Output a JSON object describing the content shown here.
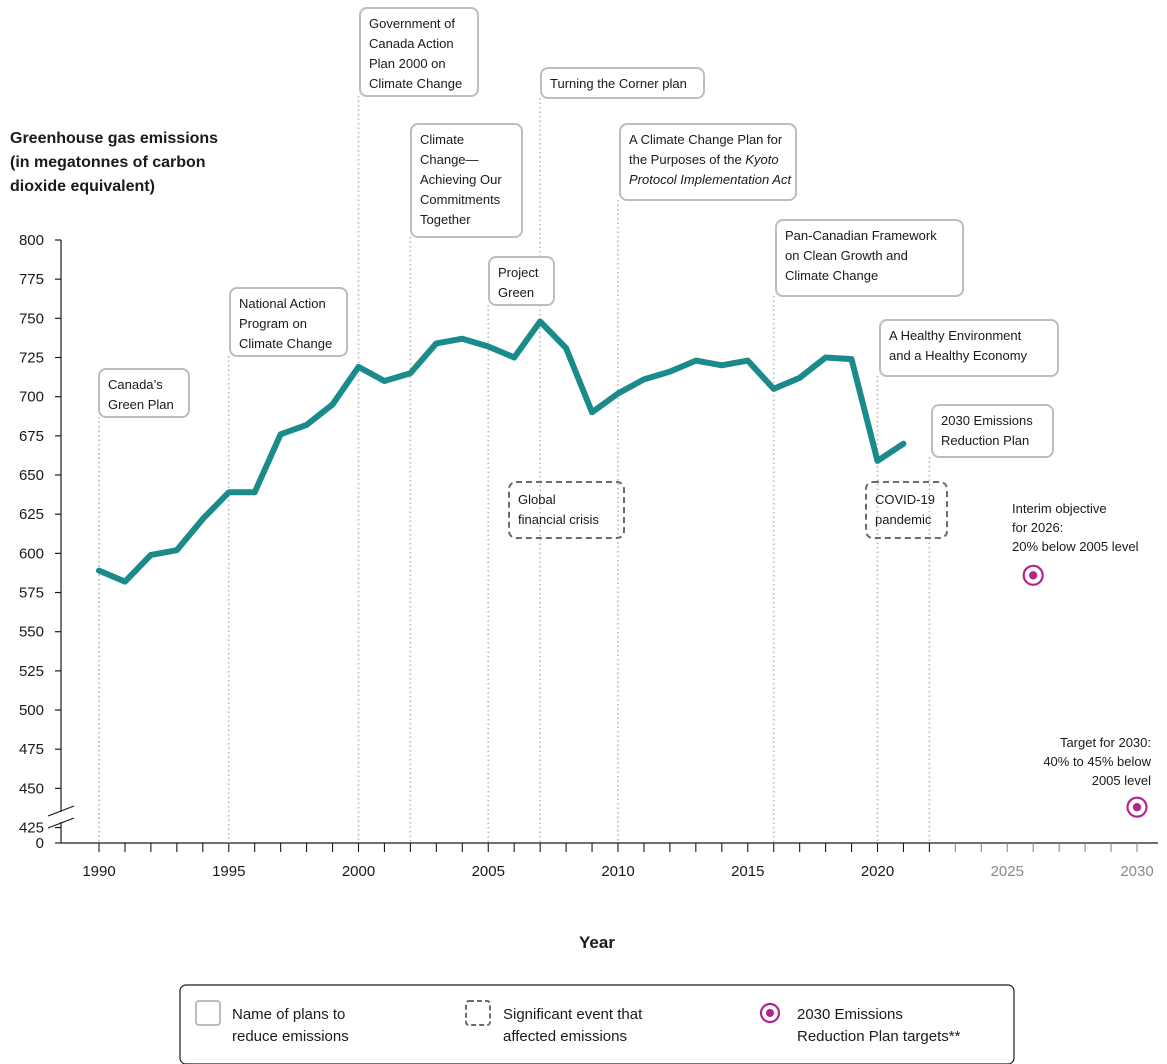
{
  "chart_data": {
    "type": "line",
    "title": "",
    "ylabel": [
      "Greenhouse gas emissions",
      "(in megatonnes of carbon",
      "dioxide equivalent)"
    ],
    "xlabel": "Year",
    "ylim": [
      425,
      800
    ],
    "y_axis_break": true,
    "y_ticks": [
      800,
      775,
      750,
      725,
      700,
      675,
      650,
      625,
      600,
      575,
      550,
      525,
      500,
      475,
      450,
      425
    ],
    "y_zero_label": "0",
    "xlim": [
      1990,
      2030
    ],
    "x_ticks": [
      1990,
      1995,
      2000,
      2005,
      2010,
      2015,
      2020,
      2025,
      2030
    ],
    "grid": false,
    "series": [
      {
        "color": "#1a8a8a",
        "x": [
          1990,
          1991,
          1992,
          1993,
          1994,
          1995,
          1996,
          1997,
          1998,
          1999,
          2000,
          2001,
          2002,
          2003,
          2004,
          2005,
          2006,
          2007,
          2008,
          2009,
          2010,
          2011,
          2012,
          2013,
          2014,
          2015,
          2016,
          2017,
          2018,
          2019,
          2020,
          2021
        ],
        "values": [
          589,
          582,
          599,
          602,
          622,
          639,
          639,
          676,
          682,
          695,
          719,
          710,
          715,
          734,
          737,
          732,
          725,
          748,
          731,
          690,
          702,
          711,
          716,
          723,
          720,
          723,
          705,
          712,
          725,
          724,
          659,
          670
        ]
      }
    ],
    "targets": [
      {
        "x": 2026,
        "y": 586,
        "label": [
          "Interim objective",
          "for 2026:",
          "20% below 2005 level"
        ]
      },
      {
        "x": 2030,
        "y": 438,
        "label": [
          "Target for 2030:",
          "40% to 45% below",
          "2005 level"
        ]
      }
    ],
    "plans": [
      {
        "year": 1990,
        "label": [
          "Canada’s",
          "Green Plan"
        ]
      },
      {
        "year": 1995,
        "label": [
          "National Action",
          "Program on",
          "Climate Change"
        ]
      },
      {
        "year": 2000,
        "label": [
          "Government of",
          "Canada Action",
          "Plan 2000 on",
          "Climate Change"
        ]
      },
      {
        "year": 2002,
        "label": [
          "Climate",
          "Change—",
          "Achieving Our",
          "Commitments",
          "Together"
        ]
      },
      {
        "year": 2005,
        "label": [
          "Project",
          "Green"
        ]
      },
      {
        "year": 2007,
        "label": [
          "Turning the Corner plan"
        ]
      },
      {
        "year": 2010,
        "label": [
          "A Climate Change Plan for",
          "the Purposes of the Kyoto",
          "Protocol Implementation Act"
        ]
      },
      {
        "year": 2016,
        "label": [
          "Pan-Canadian Framework",
          "on Clean Growth and",
          "Climate Change"
        ]
      },
      {
        "year": 2020,
        "label": [
          "A Healthy Environment",
          "and a Healthy Economy"
        ]
      },
      {
        "year": 2022,
        "label": [
          "2030 Emissions",
          "Reduction Plan"
        ]
      }
    ],
    "events": [
      {
        "year": 2008,
        "label": [
          "Global",
          "financial crisis"
        ]
      },
      {
        "year": 2020,
        "label": [
          "COVID-19",
          "pandemic"
        ]
      }
    ],
    "colors": {
      "line": "#1a8a8a",
      "target": "#b0268f",
      "plan_box": "#bdbdbd",
      "event_box": "#6b6b6b",
      "guide": "#b8b8b8",
      "future_tick": "#8a8a8a"
    }
  },
  "legend": [
    {
      "kind": "plan",
      "label": [
        "Name of plans to",
        "reduce emissions"
      ]
    },
    {
      "kind": "event",
      "label": [
        "Significant event that",
        "affected emissions"
      ]
    },
    {
      "kind": "target",
      "label": [
        "2030 Emissions",
        "Reduction Plan targets**"
      ]
    }
  ]
}
